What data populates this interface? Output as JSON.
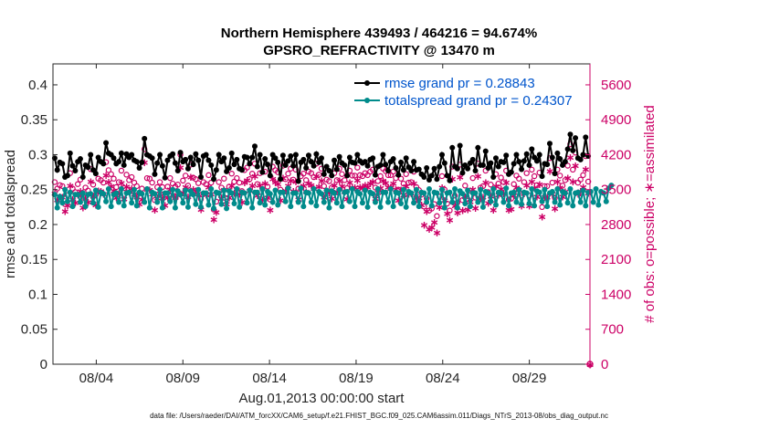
{
  "colors": {
    "rmse": "#000000",
    "spread": "#008b8b",
    "obs": "#cc0066",
    "legend_text": "#0055cc"
  },
  "chart_data": {
    "type": "line",
    "title": "Northern Hemisphere 439493 / 464216 = 94.674%",
    "subtitle": "GPSRO_REFRACTIVITY @ 13470 m",
    "xlabel": "Aug.01,2013 00:00:00 start",
    "ylabel": "rmse and totalspread",
    "ylabel_right": "# of obs: o=possible; ∗=assimilated",
    "x_unit": "days since Aug.01,2013 00:00",
    "xlim": [
      0.5,
      31.5
    ],
    "ylim": [
      0,
      0.43
    ],
    "ylim_right": [
      0,
      6020
    ],
    "x_ticks": [
      3,
      8,
      13,
      18,
      23,
      28
    ],
    "x_tick_labels": [
      "08/04",
      "08/09",
      "08/14",
      "08/19",
      "08/24",
      "08/29"
    ],
    "y_ticks": [
      0,
      0.05,
      0.1,
      0.15,
      0.2,
      0.25,
      0.3,
      0.35,
      0.4
    ],
    "y_tick_labels": [
      "0",
      "0.05",
      "0.1",
      "0.15",
      "0.2",
      "0.25",
      "0.3",
      "0.35",
      "0.4"
    ],
    "y_right_ticks": [
      0,
      700,
      1400,
      2100,
      2800,
      3500,
      4200,
      4900,
      5600
    ],
    "y_right_tick_labels": [
      "0",
      "700",
      "1400",
      "2100",
      "2800",
      "3500",
      "4200",
      "4900",
      "5600"
    ],
    "legend_placement": "top-right",
    "grid": false,
    "footer": "data file: /Users/raeder/DAI/ATM_forcXX/CAM6_setup/f.e21.FHIST_BGC.f09_025.CAM6assim.011/Diags_NTrS_2013-08/obs_diag_output.nc",
    "series": [
      {
        "name": "rmse grand pr = 0.28843",
        "axis": "left",
        "values": [
          0.295,
          0.278,
          0.289,
          0.287,
          0.268,
          0.27,
          0.302,
          0.284,
          0.277,
          0.29,
          0.294,
          0.268,
          0.285,
          0.282,
          0.3,
          0.278,
          0.273,
          0.296,
          0.29,
          0.287,
          0.317,
          0.302,
          0.3,
          0.295,
          0.287,
          0.29,
          0.302,
          0.285,
          0.301,
          0.296,
          0.3,
          0.292,
          0.29,
          0.281,
          0.289,
          0.323,
          0.3,
          0.298,
          0.295,
          0.272,
          0.288,
          0.3,
          0.284,
          0.267,
          0.292,
          0.298,
          0.301,
          0.288,
          0.277,
          0.303,
          0.29,
          0.293,
          0.28,
          0.296,
          0.286,
          0.301,
          0.292,
          0.268,
          0.298,
          0.3,
          0.292,
          0.285,
          0.265,
          0.278,
          0.3,
          0.29,
          0.295,
          0.276,
          0.281,
          0.302,
          0.286,
          0.293,
          0.28,
          0.278,
          0.297,
          0.296,
          0.287,
          0.296,
          0.312,
          0.283,
          0.3,
          0.275,
          0.294,
          0.286,
          0.27,
          0.3,
          0.295,
          0.289,
          0.265,
          0.299,
          0.285,
          0.291,
          0.298,
          0.284,
          0.3,
          0.262,
          0.289,
          0.293,
          0.281,
          0.299,
          0.29,
          0.284,
          0.301,
          0.289,
          0.295,
          0.272,
          0.283,
          0.277,
          0.27,
          0.292,
          0.279,
          0.297,
          0.288,
          0.285,
          0.27,
          0.296,
          0.289,
          0.288,
          0.3,
          0.291,
          0.288,
          0.29,
          0.284,
          0.293,
          0.295,
          0.271,
          0.283,
          0.285,
          0.3,
          0.286,
          0.277,
          0.29,
          0.294,
          0.281,
          0.271,
          0.289,
          0.278,
          0.295,
          0.282,
          0.277,
          0.29,
          0.278,
          0.279,
          0.272,
          0.268,
          0.281,
          0.264,
          0.27,
          0.28,
          0.265,
          0.283,
          0.3,
          0.288,
          0.27,
          0.263,
          0.31,
          0.283,
          0.28,
          0.313,
          0.274,
          0.285,
          0.28,
          0.288,
          0.293,
          0.277,
          0.31,
          0.285,
          0.285,
          0.305,
          0.281,
          0.288,
          0.268,
          0.295,
          0.283,
          0.29,
          0.289,
          0.299,
          0.272,
          0.275,
          0.287,
          0.3,
          0.29,
          0.279,
          0.291,
          0.301,
          0.285,
          0.308,
          0.296,
          0.291,
          0.3,
          0.269,
          0.287,
          0.286,
          0.316,
          0.296,
          0.273,
          0.302,
          0.294,
          0.285,
          0.29,
          0.308,
          0.329,
          0.306,
          0.324,
          0.295,
          0.293,
          0.3,
          0.325,
          0.298
        ]
      },
      {
        "name": "totalspread grand pr = 0.24307",
        "axis": "left",
        "values": [
          0.243,
          0.224,
          0.24,
          0.231,
          0.25,
          0.233,
          0.246,
          0.226,
          0.243,
          0.243,
          0.232,
          0.245,
          0.226,
          0.243,
          0.244,
          0.231,
          0.249,
          0.225,
          0.246,
          0.244,
          0.233,
          0.251,
          0.226,
          0.243,
          0.245,
          0.232,
          0.251,
          0.227,
          0.245,
          0.246,
          0.231,
          0.25,
          0.227,
          0.246,
          0.244,
          0.232,
          0.251,
          0.224,
          0.246,
          0.244,
          0.232,
          0.25,
          0.224,
          0.245,
          0.245,
          0.233,
          0.25,
          0.224,
          0.248,
          0.243,
          0.231,
          0.249,
          0.225,
          0.248,
          0.243,
          0.229,
          0.25,
          0.225,
          0.245,
          0.245,
          0.228,
          0.251,
          0.223,
          0.246,
          0.245,
          0.229,
          0.249,
          0.223,
          0.248,
          0.245,
          0.23,
          0.251,
          0.225,
          0.246,
          0.245,
          0.231,
          0.249,
          0.224,
          0.246,
          0.246,
          0.231,
          0.251,
          0.228,
          0.247,
          0.244,
          0.232,
          0.249,
          0.228,
          0.246,
          0.246,
          0.233,
          0.252,
          0.226,
          0.245,
          0.245,
          0.232,
          0.252,
          0.226,
          0.246,
          0.245,
          0.232,
          0.251,
          0.227,
          0.247,
          0.244,
          0.232,
          0.249,
          0.224,
          0.248,
          0.245,
          0.231,
          0.25,
          0.226,
          0.246,
          0.247,
          0.233,
          0.251,
          0.226,
          0.247,
          0.244,
          0.231,
          0.249,
          0.225,
          0.246,
          0.244,
          0.232,
          0.251,
          0.225,
          0.246,
          0.246,
          0.232,
          0.251,
          0.226,
          0.246,
          0.245,
          0.23,
          0.25,
          0.225,
          0.247,
          0.245,
          0.231,
          0.25,
          0.226,
          0.246,
          0.245,
          0.232,
          0.251,
          0.227,
          0.246,
          0.245,
          0.231,
          0.25,
          0.224,
          0.245,
          0.246,
          0.232,
          0.251,
          0.224,
          0.248,
          0.244,
          0.23,
          0.249,
          0.226,
          0.245,
          0.245,
          0.232,
          0.25,
          0.225,
          0.247,
          0.245,
          0.233,
          0.251,
          0.228,
          0.246,
          0.245,
          0.232,
          0.252,
          0.227,
          0.245,
          0.246,
          0.232,
          0.25,
          0.229,
          0.246,
          0.245,
          0.23,
          0.251,
          0.227,
          0.248,
          0.246,
          0.233,
          0.25,
          0.226,
          0.245,
          0.247,
          0.232,
          0.251,
          0.228,
          0.247,
          0.245,
          0.231,
          0.251,
          0.227,
          0.245,
          0.246,
          0.232,
          0.249,
          0.227,
          0.246,
          0.247,
          0.232,
          0.251,
          0.228,
          0.247,
          0.245,
          0.233,
          0.252,
          0.256
        ]
      },
      {
        "name": "obs possible",
        "axis": "right",
        "marker": "o",
        "values": [
          3650,
          3520,
          3590,
          3570,
          3210,
          3390,
          3830,
          3520,
          3450,
          3610,
          3700,
          3360,
          3540,
          3480,
          3910,
          3600,
          3400,
          3720,
          3690,
          3640,
          4050,
          3890,
          3810,
          3720,
          3550,
          3650,
          3880,
          3530,
          3800,
          3690,
          3750,
          3640,
          3570,
          3430,
          3520,
          4310,
          3730,
          3720,
          3640,
          3290,
          3550,
          3650,
          3550,
          3390,
          3560,
          3730,
          3620,
          3560,
          3600,
          4200,
          3680,
          3780,
          3580,
          4000,
          3740,
          3710,
          3630,
          3310,
          3650,
          3610,
          3790,
          3640,
          3100,
          3260,
          3650,
          3540,
          3720,
          3420,
          3560,
          3820,
          3660,
          3730,
          3640,
          3470,
          3890,
          3940,
          3710,
          3820,
          4020,
          3610,
          3830,
          3510,
          3860,
          3560,
          3300,
          3960,
          3890,
          3850,
          3500,
          3980,
          3710,
          3820,
          3920,
          3700,
          3900,
          3520,
          3770,
          3820,
          3690,
          3860,
          3830,
          3750,
          4020,
          3800,
          3920,
          3570,
          3700,
          3670,
          3540,
          3830,
          3690,
          3920,
          3810,
          3690,
          3530,
          3880,
          3780,
          3780,
          3940,
          3790,
          3770,
          3830,
          3790,
          3860,
          3900,
          3540,
          3670,
          3770,
          3920,
          3870,
          3790,
          3790,
          3860,
          3730,
          3500,
          3720,
          3620,
          3810,
          3640,
          3650,
          3860,
          3550,
          3490,
          3400,
          3160,
          3320,
          3080,
          3120,
          3210,
          2970,
          3360,
          3770,
          3500,
          3220,
          3080,
          3960,
          3380,
          3240,
          4000,
          3290,
          3580,
          3310,
          3480,
          3730,
          3340,
          4020,
          3540,
          3570,
          3880,
          3450,
          3600,
          3300,
          3810,
          3620,
          3740,
          3650,
          3880,
          3300,
          3320,
          3610,
          3780,
          3720,
          3380,
          3650,
          3830,
          3380,
          3900,
          3770,
          3590,
          3840,
          3150,
          3570,
          3570,
          4130,
          3640,
          3330,
          3900,
          3780,
          3580,
          3690,
          3980,
          4410,
          3900,
          4240,
          3640,
          3700,
          3790,
          4170,
          3660
        ]
      },
      {
        "name": "obs assimilated",
        "axis": "right",
        "marker": "*",
        "values": [
          3430,
          3300,
          3370,
          3360,
          3070,
          3190,
          3590,
          3310,
          3250,
          3400,
          3480,
          3150,
          3330,
          3260,
          3670,
          3380,
          3200,
          3490,
          3480,
          3420,
          3800,
          3660,
          3580,
          3490,
          3350,
          3430,
          3640,
          3320,
          3570,
          3470,
          3530,
          3420,
          3360,
          3220,
          3310,
          4050,
          3510,
          3500,
          3420,
          3100,
          3340,
          3430,
          3340,
          3190,
          3350,
          3510,
          3400,
          3350,
          3390,
          3950,
          3450,
          3560,
          3370,
          3760,
          3510,
          3490,
          3420,
          3110,
          3430,
          3400,
          3560,
          3420,
          2910,
          3060,
          3430,
          3330,
          3500,
          3220,
          3350,
          3590,
          3440,
          3510,
          3420,
          3260,
          3650,
          3700,
          3490,
          3590,
          3780,
          3390,
          3600,
          3300,
          3630,
          3350,
          3100,
          3720,
          3660,
          3620,
          3290,
          3740,
          3490,
          3590,
          3690,
          3480,
          3670,
          3310,
          3540,
          3590,
          3470,
          3630,
          3600,
          3530,
          3780,
          3570,
          3690,
          3360,
          3480,
          3450,
          3330,
          3600,
          3470,
          3690,
          3580,
          3470,
          3320,
          3650,
          3550,
          3550,
          3700,
          3560,
          3540,
          3600,
          3560,
          3630,
          3670,
          3330,
          3450,
          3540,
          3690,
          3640,
          3560,
          3560,
          3630,
          3510,
          3290,
          3500,
          3400,
          3580,
          3420,
          3430,
          3630,
          3340,
          3280,
          3200,
          2800,
          3070,
          2720,
          2750,
          2850,
          2640,
          3160,
          3550,
          3290,
          3030,
          2900,
          3720,
          3180,
          3050,
          3760,
          3090,
          3370,
          3110,
          3270,
          3510,
          3140,
          3780,
          3330,
          3360,
          3650,
          3240,
          3380,
          3100,
          3580,
          3400,
          3520,
          3430,
          3650,
          3100,
          3120,
          3390,
          3550,
          3500,
          3180,
          3430,
          3600,
          3180,
          3670,
          3540,
          3370,
          3610,
          2960,
          3360,
          3360,
          3880,
          3420,
          3130,
          3670,
          3550,
          3370,
          3470,
          3740,
          4150,
          3670,
          3990,
          3420,
          3480,
          3560,
          3920,
          3440
        ]
      }
    ]
  }
}
